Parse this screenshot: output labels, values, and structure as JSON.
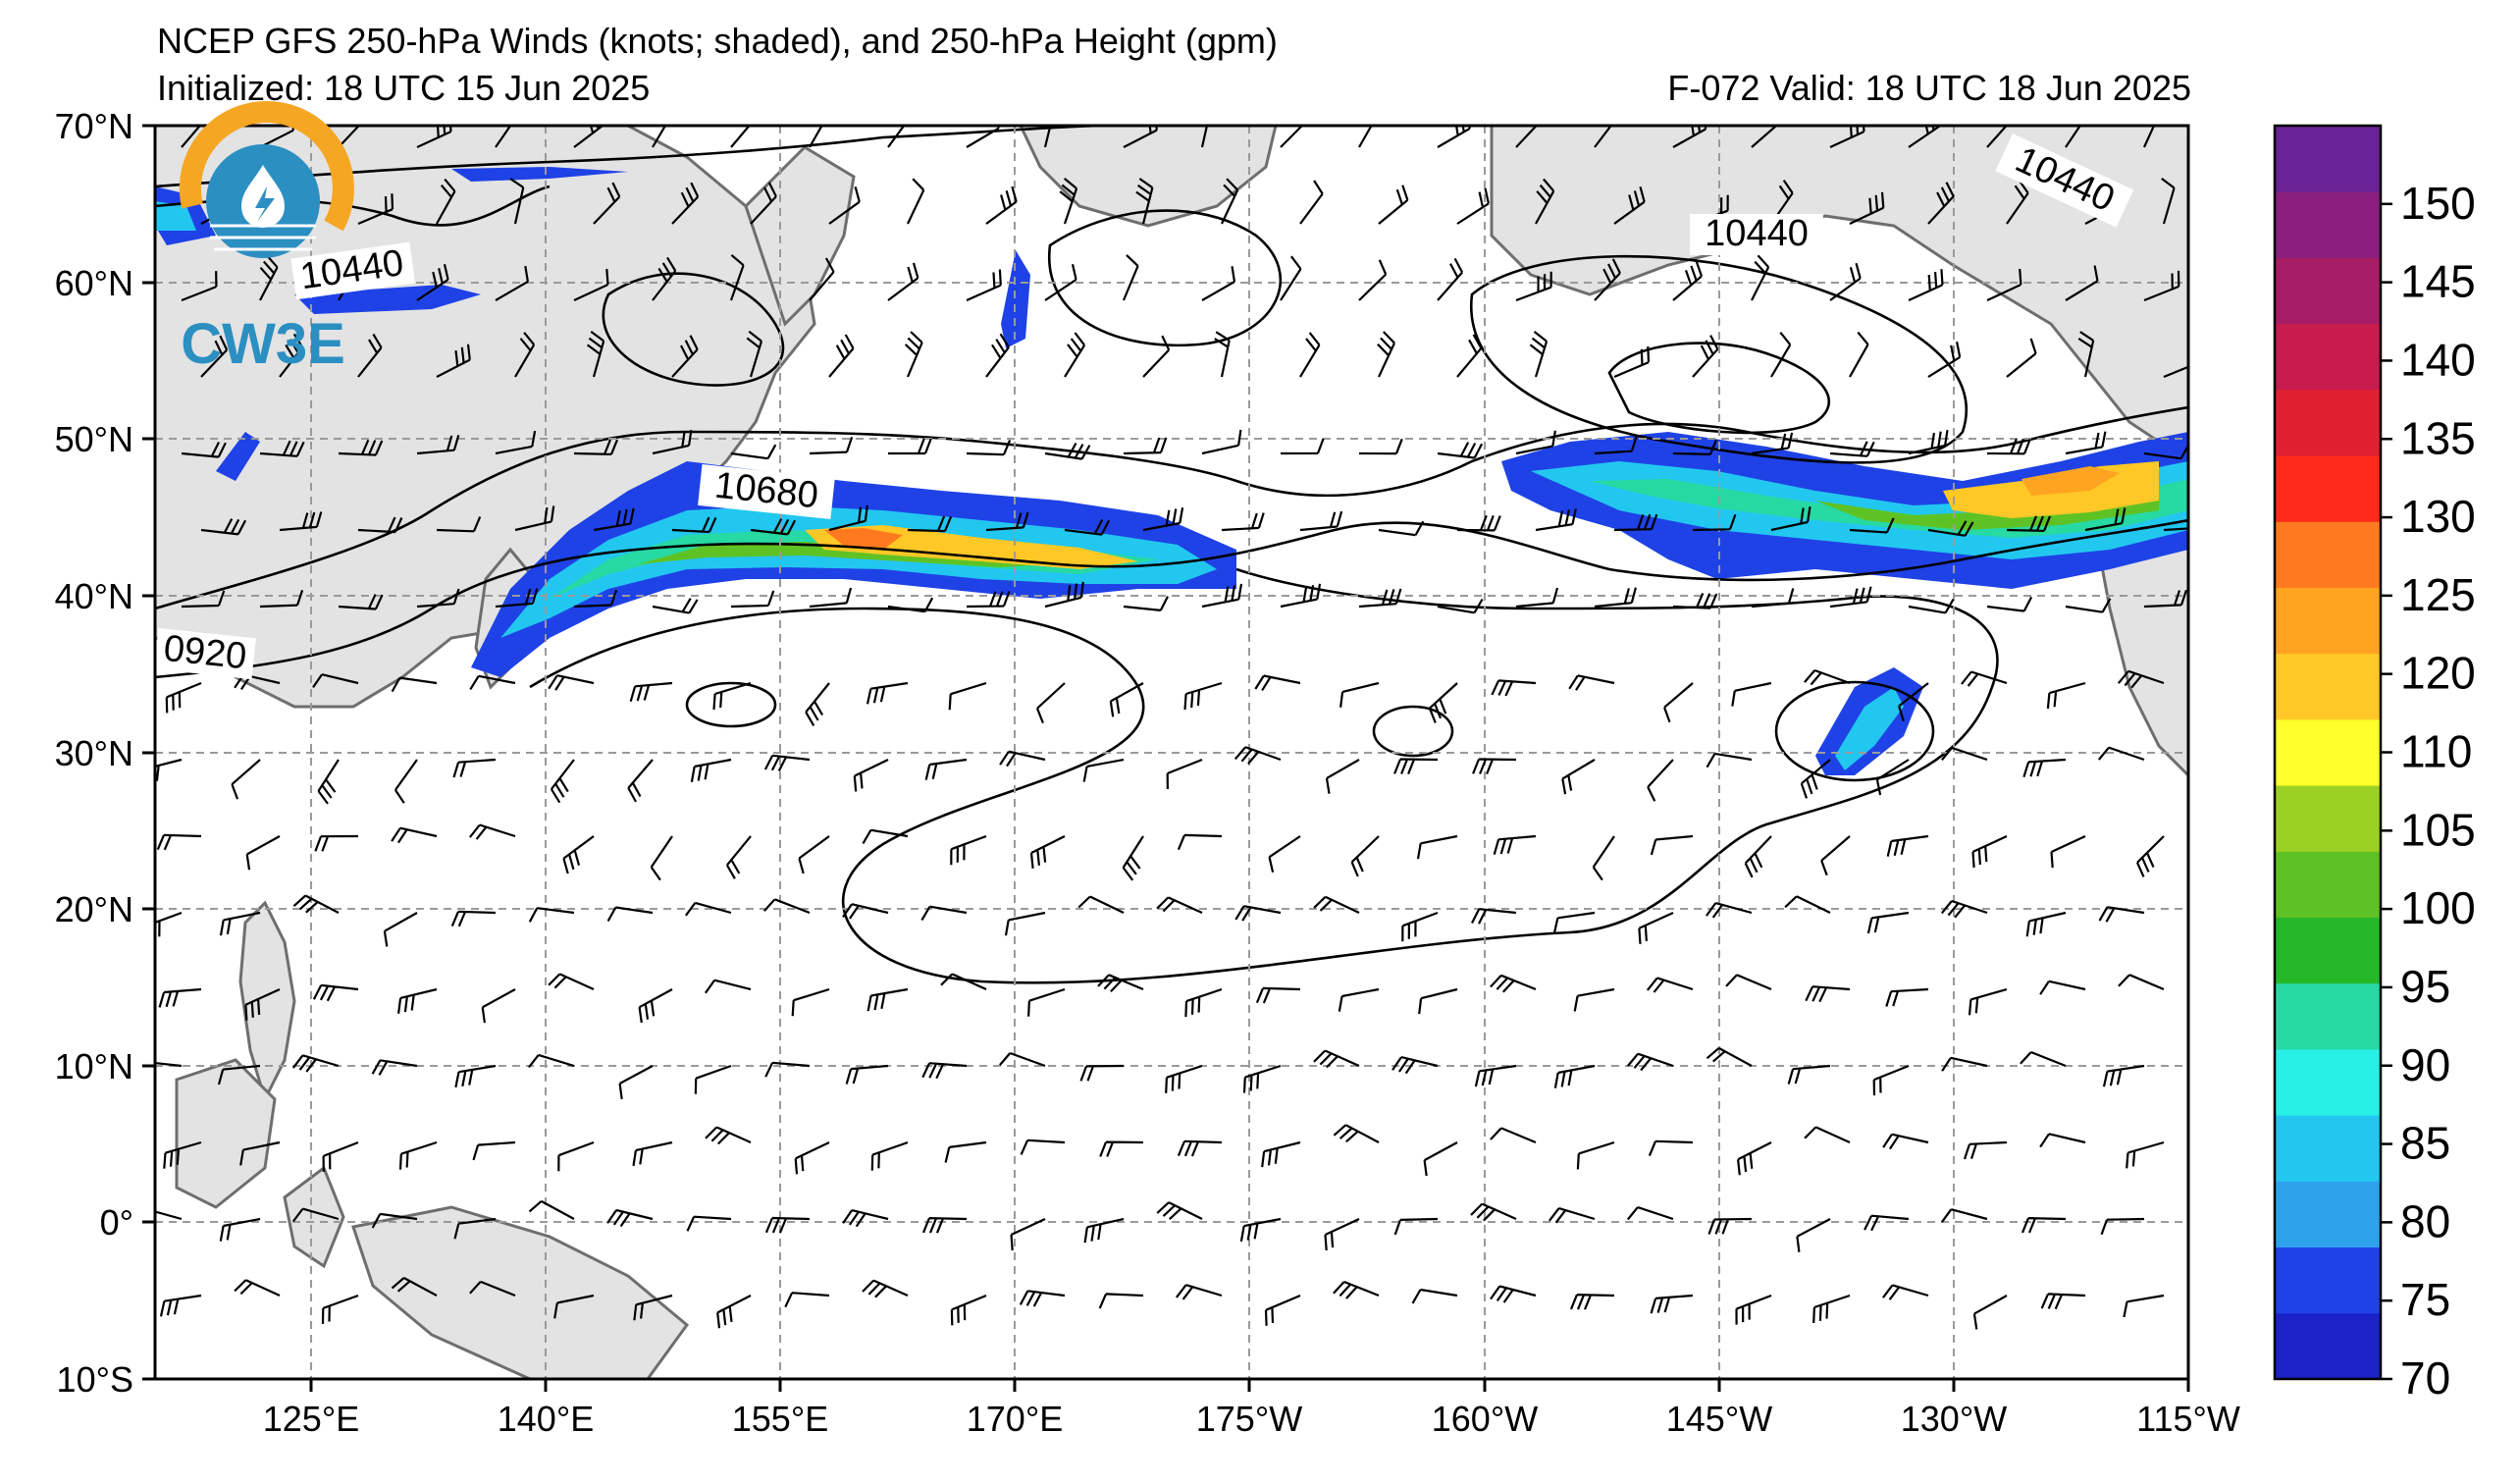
{
  "header": {
    "title": "NCEP GFS 250-hPa Winds (knots; shaded), and 250-hPa Height (gpm)",
    "initialized": "Initialized: 18 UTC 15 Jun 2025",
    "valid": "F-072  Valid: 18 UTC 18 Jun 2025"
  },
  "logo": {
    "text": "CW3E",
    "ring_color": "#f5a623",
    "accent_color": "#2b8fc1"
  },
  "map": {
    "lat_labels": [
      "70°N",
      "60°N",
      "50°N",
      "40°N",
      "30°N",
      "20°N",
      "10°N",
      "0°",
      "10°S"
    ],
    "lon_labels": [
      "125°E",
      "140°E",
      "155°E",
      "170°E",
      "175°W",
      "160°W",
      "145°W",
      "130°W",
      "115°W"
    ],
    "lon_extent": [
      "110°E",
      "115°W"
    ],
    "lat_extent": [
      "10°S",
      "70°N"
    ],
    "gridlines": true,
    "land_color": "#e3e3e3",
    "contour_labels": [
      "10440",
      "10440",
      "10440",
      "10680",
      "0920"
    ]
  },
  "colorbar": {
    "ticks": [
      "70",
      "75",
      "80",
      "85",
      "90",
      "95",
      "100",
      "105",
      "110",
      "120",
      "125",
      "130",
      "135",
      "140",
      "145",
      "150"
    ],
    "colors": [
      "#1a22c8",
      "#1f42e6",
      "#2ea3ec",
      "#22c7f0",
      "#29f0e6",
      "#27d9a3",
      "#25b829",
      "#5fc224",
      "#9bd122",
      "#ffff2a",
      "#ffc826",
      "#ffa421",
      "#ff7a1f",
      "#ff2a1a",
      "#e02031",
      "#c81b4e",
      "#a61d65",
      "#8a1f7f",
      "#6a2396"
    ]
  }
}
